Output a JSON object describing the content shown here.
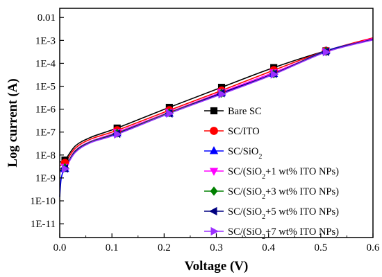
{
  "chart_data": {
    "type": "line",
    "xlabel": "Voltage (V)",
    "ylabel": "Log current (A)",
    "xlim": [
      0.0,
      0.6
    ],
    "ylim_log10": [
      -11.6,
      -1.6
    ],
    "y_scale": "log",
    "grid": false,
    "legend_position": "right",
    "x_ticks": [
      0.0,
      0.1,
      0.2,
      0.3,
      0.4,
      0.5,
      0.6
    ],
    "x_tick_labels": [
      "0.0",
      "0.1",
      "0.2",
      "0.3",
      "0.4",
      "0.5",
      "0.6"
    ],
    "y_ticks": [
      1e-11,
      1e-10,
      1e-09,
      1e-08,
      1e-07,
      1e-06,
      1e-05,
      0.0001,
      0.001,
      0.01
    ],
    "y_tick_labels": [
      "1E-11",
      "1E-10",
      "1E-9",
      "1E-8",
      "1E-7",
      "1E-6",
      "1E-5",
      "1E-4",
      "1E-3",
      "0.01"
    ],
    "marker_x": [
      0.01,
      0.11,
      0.21,
      0.31,
      0.41,
      0.51
    ],
    "series": [
      {
        "name": "Bare SC",
        "name_main": "Bare SC",
        "name_sub": "",
        "name_tail": "",
        "color": "#000000",
        "marker": "square",
        "x": [
          0.0,
          0.01,
          0.03,
          0.06,
          0.11,
          0.21,
          0.31,
          0.41,
          0.51,
          0.6
        ],
        "y": [
          5e-09,
          6e-09,
          2.5e-08,
          6e-08,
          1.5e-07,
          1.2e-06,
          9e-06,
          6.5e-05,
          0.00035,
          0.0011
        ]
      },
      {
        "name": "SC/ITO",
        "name_main": "SC/ITO",
        "name_sub": "",
        "name_tail": "",
        "color": "#ff0000",
        "marker": "circle",
        "x": [
          0.0,
          0.01,
          0.03,
          0.06,
          0.11,
          0.21,
          0.31,
          0.41,
          0.51,
          0.6
        ],
        "y": [
          3.5e-09,
          4.5e-09,
          2e-08,
          5e-08,
          1.2e-07,
          9e-07,
          6.5e-06,
          5e-05,
          0.00035,
          0.0013
        ]
      },
      {
        "name": "SC/SiO2",
        "name_main": "SC/SiO",
        "name_sub": "2",
        "name_tail": "",
        "color": "#0000ff",
        "marker": "triangle-up",
        "x": [
          0.0,
          0.003,
          0.01,
          0.03,
          0.06,
          0.11,
          0.21,
          0.31,
          0.41,
          0.51,
          0.6
        ],
        "y": [
          1.5e-10,
          1e-09,
          2.5e-09,
          1.5e-08,
          4e-08,
          9e-08,
          6.5e-07,
          5e-06,
          3.5e-05,
          0.00035,
          0.0011
        ]
      },
      {
        "name": "SC/(SiO2+1 wt% ITO NPs)",
        "name_main": "SC/(SiO",
        "name_sub": "2",
        "name_tail": "+1 wt% ITO NPs)",
        "color": "#ff00ff",
        "marker": "triangle-down",
        "x": [
          0.0,
          0.01,
          0.03,
          0.06,
          0.11,
          0.21,
          0.31,
          0.41,
          0.51,
          0.6
        ],
        "y": [
          2.5e-09,
          3e-09,
          1.6e-08,
          4e-08,
          1e-07,
          7.5e-07,
          5.5e-06,
          4e-05,
          0.00032,
          0.0012
        ]
      },
      {
        "name": "SC/(SiO2+3 wt% ITO NPs)",
        "name_main": "SC/(SiO",
        "name_sub": "2",
        "name_tail": "+3 wt% ITO NPs)",
        "color": "#008000",
        "marker": "diamond",
        "x": [
          0.0,
          0.01,
          0.03,
          0.06,
          0.11,
          0.21,
          0.31,
          0.41,
          0.51,
          0.6
        ],
        "y": [
          2.2e-09,
          2.8e-09,
          1.5e-08,
          3.8e-08,
          9e-08,
          7e-07,
          5e-06,
          3.5e-05,
          0.00033,
          0.0011
        ]
      },
      {
        "name": "SC/(SiO2+5 wt% ITO NPs)",
        "name_main": "SC/(SiO",
        "name_sub": "2",
        "name_tail": "+5 wt% ITO NPs)",
        "color": "#000080",
        "marker": "triangle-left",
        "x": [
          0.0,
          0.01,
          0.03,
          0.06,
          0.11,
          0.21,
          0.31,
          0.41,
          0.51,
          0.6
        ],
        "y": [
          2e-09,
          2.6e-09,
          1.4e-08,
          3.6e-08,
          8.5e-08,
          6.5e-07,
          5e-06,
          3.5e-05,
          0.00032,
          0.0011
        ]
      },
      {
        "name": "SC/(SiO2+7 wt% ITO NPs)",
        "name_main": "SC/(SiO",
        "name_sub": "2",
        "name_tail": "+7 wt% ITO NPs)",
        "color": "#9b30ff",
        "marker": "triangle-right",
        "x": [
          0.0,
          0.01,
          0.03,
          0.06,
          0.11,
          0.21,
          0.31,
          0.41,
          0.51,
          0.6
        ],
        "y": [
          1.8e-09,
          2.5e-09,
          1.3e-08,
          3.5e-08,
          8e-08,
          6.5e-07,
          4.5e-06,
          3.3e-05,
          0.00031,
          0.00105
        ]
      }
    ]
  }
}
